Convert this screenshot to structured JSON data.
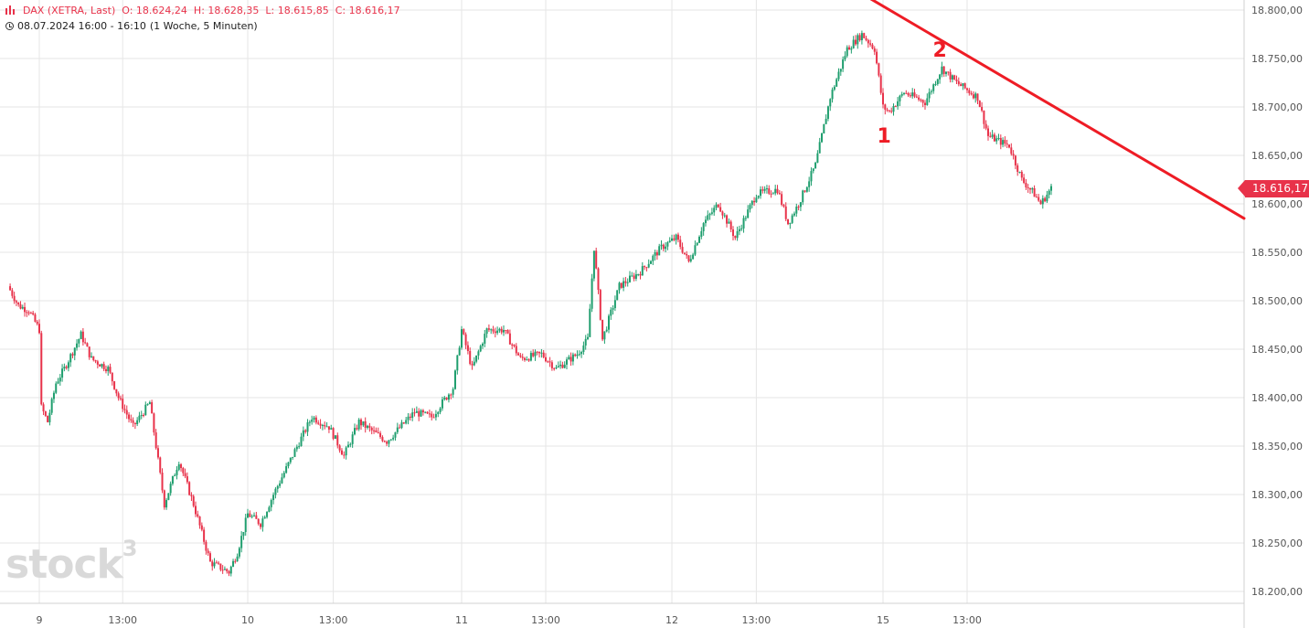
{
  "header": {
    "instrument": "DAX (XETRA, Last)",
    "open": "O: 18.624,24",
    "high": "H: 18.628,35",
    "low": "L: 18.615,85",
    "close": "C: 18.616,17",
    "time_range": "08.07.2024 16:00 - 16:10",
    "interval": "(1 Woche, 5 Minuten)"
  },
  "last_price_label": "18.616,17",
  "watermark": "stock",
  "watermark_sup": "3",
  "colors": {
    "up": "#1f9e6e",
    "down": "#e8324a",
    "trendline": "#ee1c25",
    "grid": "#e6e6e6"
  },
  "chart_data": {
    "type": "candlestick",
    "ylim": [
      18185,
      18810
    ],
    "y_ticks": [
      18200,
      18250,
      18300,
      18350,
      18400,
      18450,
      18500,
      18550,
      18600,
      18650,
      18700,
      18750,
      18800
    ],
    "y_tick_labels": [
      "18.200,00",
      "18.250,00",
      "18.300,00",
      "18.350,00",
      "18.400,00",
      "18.450,00",
      "18.500,00",
      "18.550,00",
      "18.600,00",
      "18.650,00",
      "18.700,00",
      "18.750,00",
      "18.800,00"
    ],
    "x_ticks": [
      {
        "label": "9",
        "t": 0.0
      },
      {
        "label": "13:00",
        "t": 0.4
      },
      {
        "label": "10",
        "t": 1.0
      },
      {
        "label": "13:00",
        "t": 1.4
      },
      {
        "label": "11",
        "t": 2.0
      },
      {
        "label": "13:00",
        "t": 2.4
      },
      {
        "label": "12",
        "t": 3.0
      },
      {
        "label": "13:00",
        "t": 3.4
      },
      {
        "label": "15",
        "t": 4.0
      },
      {
        "label": "13:00",
        "t": 4.4
      }
    ],
    "x_range": [
      -0.15,
      5.65
    ],
    "path": [
      {
        "t": -0.15,
        "v": 18515
      },
      {
        "t": -0.1,
        "v": 18495
      },
      {
        "t": -0.05,
        "v": 18490
      },
      {
        "t": 0.0,
        "v": 18470
      },
      {
        "t": 0.01,
        "v": 18390
      },
      {
        "t": 0.04,
        "v": 18375
      },
      {
        "t": 0.08,
        "v": 18415
      },
      {
        "t": 0.12,
        "v": 18430
      },
      {
        "t": 0.2,
        "v": 18465
      },
      {
        "t": 0.25,
        "v": 18440
      },
      {
        "t": 0.33,
        "v": 18430
      },
      {
        "t": 0.38,
        "v": 18400
      },
      {
        "t": 0.45,
        "v": 18370
      },
      {
        "t": 0.53,
        "v": 18395
      },
      {
        "t": 0.6,
        "v": 18290
      },
      {
        "t": 0.67,
        "v": 18335
      },
      {
        "t": 0.74,
        "v": 18290
      },
      {
        "t": 0.82,
        "v": 18230
      },
      {
        "t": 0.91,
        "v": 18220
      },
      {
        "t": 0.95,
        "v": 18240
      },
      {
        "t": 1.0,
        "v": 18280
      },
      {
        "t": 1.06,
        "v": 18270
      },
      {
        "t": 1.12,
        "v": 18300
      },
      {
        "t": 1.22,
        "v": 18345
      },
      {
        "t": 1.3,
        "v": 18380
      },
      {
        "t": 1.38,
        "v": 18370
      },
      {
        "t": 1.45,
        "v": 18340
      },
      {
        "t": 1.52,
        "v": 18375
      },
      {
        "t": 1.65,
        "v": 18355
      },
      {
        "t": 1.78,
        "v": 18385
      },
      {
        "t": 1.86,
        "v": 18380
      },
      {
        "t": 1.96,
        "v": 18410
      },
      {
        "t": 2.0,
        "v": 18470
      },
      {
        "t": 2.05,
        "v": 18430
      },
      {
        "t": 2.12,
        "v": 18470
      },
      {
        "t": 2.2,
        "v": 18470
      },
      {
        "t": 2.28,
        "v": 18440
      },
      {
        "t": 2.38,
        "v": 18445
      },
      {
        "t": 2.45,
        "v": 18430
      },
      {
        "t": 2.55,
        "v": 18445
      },
      {
        "t": 2.6,
        "v": 18460
      },
      {
        "t": 2.63,
        "v": 18555
      },
      {
        "t": 2.67,
        "v": 18460
      },
      {
        "t": 2.75,
        "v": 18515
      },
      {
        "t": 2.85,
        "v": 18530
      },
      {
        "t": 2.95,
        "v": 18555
      },
      {
        "t": 3.02,
        "v": 18565
      },
      {
        "t": 3.08,
        "v": 18540
      },
      {
        "t": 3.15,
        "v": 18580
      },
      {
        "t": 3.22,
        "v": 18600
      },
      {
        "t": 3.3,
        "v": 18565
      },
      {
        "t": 3.4,
        "v": 18610
      },
      {
        "t": 3.5,
        "v": 18615
      },
      {
        "t": 3.55,
        "v": 18580
      },
      {
        "t": 3.6,
        "v": 18600
      },
      {
        "t": 3.68,
        "v": 18640
      },
      {
        "t": 3.75,
        "v": 18710
      },
      {
        "t": 3.83,
        "v": 18760
      },
      {
        "t": 3.9,
        "v": 18775
      },
      {
        "t": 3.96,
        "v": 18760
      },
      {
        "t": 4.0,
        "v": 18700
      },
      {
        "t": 4.03,
        "v": 18695
      },
      {
        "t": 4.1,
        "v": 18715
      },
      {
        "t": 4.2,
        "v": 18705
      },
      {
        "t": 4.28,
        "v": 18740
      },
      {
        "t": 4.35,
        "v": 18725
      },
      {
        "t": 4.45,
        "v": 18710
      },
      {
        "t": 4.5,
        "v": 18670
      },
      {
        "t": 4.6,
        "v": 18660
      },
      {
        "t": 4.66,
        "v": 18625
      },
      {
        "t": 4.72,
        "v": 18610
      },
      {
        "t": 4.75,
        "v": 18600
      },
      {
        "t": 4.8,
        "v": 18616
      }
    ],
    "trendline": [
      {
        "t": 3.7,
        "v": 18835
      },
      {
        "t": 5.65,
        "v": 18585
      }
    ],
    "annotations": [
      {
        "text": "1",
        "t": 4.005,
        "v": 18663
      },
      {
        "text": "2",
        "t": 4.27,
        "v": 18752
      }
    ],
    "last_price": 18616.17
  }
}
